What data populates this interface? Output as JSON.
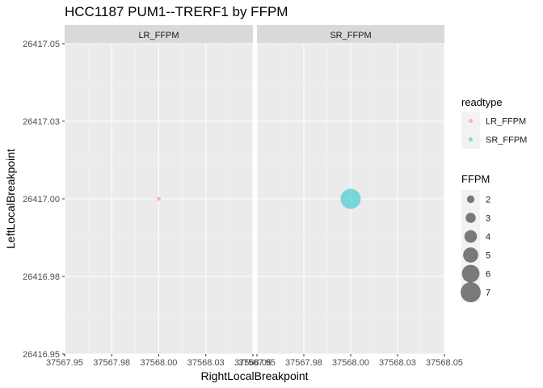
{
  "chart_data": {
    "type": "scatter",
    "title": "HCC1187 PUM1--TRERF1 by FFPM",
    "xlabel": "RightLocalBreakpoint",
    "ylabel": "LeftLocalBreakpoint",
    "xlim": [
      37567.95,
      37568.05
    ],
    "ylim": [
      26416.95,
      26417.05
    ],
    "x_ticks": [
      37567.95,
      37567.975,
      37568.0,
      37568.025,
      37568.05
    ],
    "x_tick_labels": [
      "37567.95",
      "37567.98",
      "37568.00",
      "37568.03",
      "37568.05"
    ],
    "y_ticks": [
      26416.95,
      26416.975,
      26417.0,
      26417.025,
      26417.05
    ],
    "y_tick_labels": [
      "26416.95",
      "26416.98",
      "26417.00",
      "26417.03",
      "26417.05"
    ],
    "grid": true,
    "facets": [
      {
        "label": "LR_FFPM",
        "points": [
          {
            "x": 37568.0,
            "y": 26417.0,
            "ffpm": 0.5,
            "readtype": "LR_FFPM"
          }
        ]
      },
      {
        "label": "SR_FFPM",
        "points": [
          {
            "x": 37568.0,
            "y": 26417.0,
            "ffpm": 7.0,
            "readtype": "SR_FFPM"
          }
        ]
      }
    ],
    "colors": {
      "LR_FFPM": "#F8766D",
      "SR_FFPM": "#00BFC4",
      "size_legend": "#000000"
    },
    "legend": {
      "placement": "right",
      "color_title": "readtype",
      "color_entries": [
        "LR_FFPM",
        "SR_FFPM"
      ],
      "size_title": "FFPM",
      "size_entries": [
        2,
        3,
        4,
        5,
        6,
        7
      ],
      "size_labels": [
        "2",
        "3",
        "4",
        "5",
        "6",
        "7"
      ]
    }
  }
}
